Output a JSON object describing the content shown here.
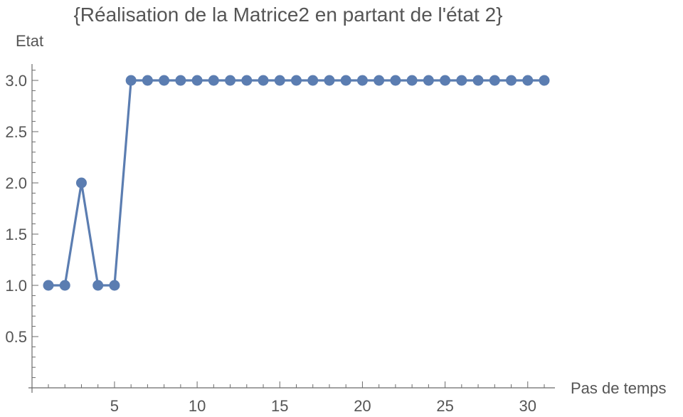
{
  "chart_data": {
    "type": "line",
    "title": "{Réalisation de la Matrice2 en partant de l'état 2}",
    "xlabel": "Pas de temps",
    "ylabel": "Etat",
    "xlim": [
      0,
      31.6
    ],
    "ylim": [
      0,
      3.17
    ],
    "x_ticks": [
      5,
      10,
      15,
      20,
      25,
      30
    ],
    "y_ticks": [
      0.5,
      1.0,
      1.5,
      2.0,
      2.5,
      3.0
    ],
    "y_tick_labels": [
      "0.5",
      "1.0",
      "1.5",
      "2.0",
      "2.5",
      "3.0"
    ],
    "grid": false,
    "legend": "none",
    "series": [
      {
        "color": "#5b7db1",
        "x": [
          1,
          2,
          3,
          4,
          5,
          6,
          7,
          8,
          9,
          10,
          11,
          12,
          13,
          14,
          15,
          16,
          17,
          18,
          19,
          20,
          21,
          22,
          23,
          24,
          25,
          26,
          27,
          28,
          29,
          30,
          31
        ],
        "values": [
          1,
          1,
          2,
          1,
          1,
          3,
          3,
          3,
          3,
          3,
          3,
          3,
          3,
          3,
          3,
          3,
          3,
          3,
          3,
          3,
          3,
          3,
          3,
          3,
          3,
          3,
          3,
          3,
          3,
          3,
          3
        ]
      }
    ]
  }
}
